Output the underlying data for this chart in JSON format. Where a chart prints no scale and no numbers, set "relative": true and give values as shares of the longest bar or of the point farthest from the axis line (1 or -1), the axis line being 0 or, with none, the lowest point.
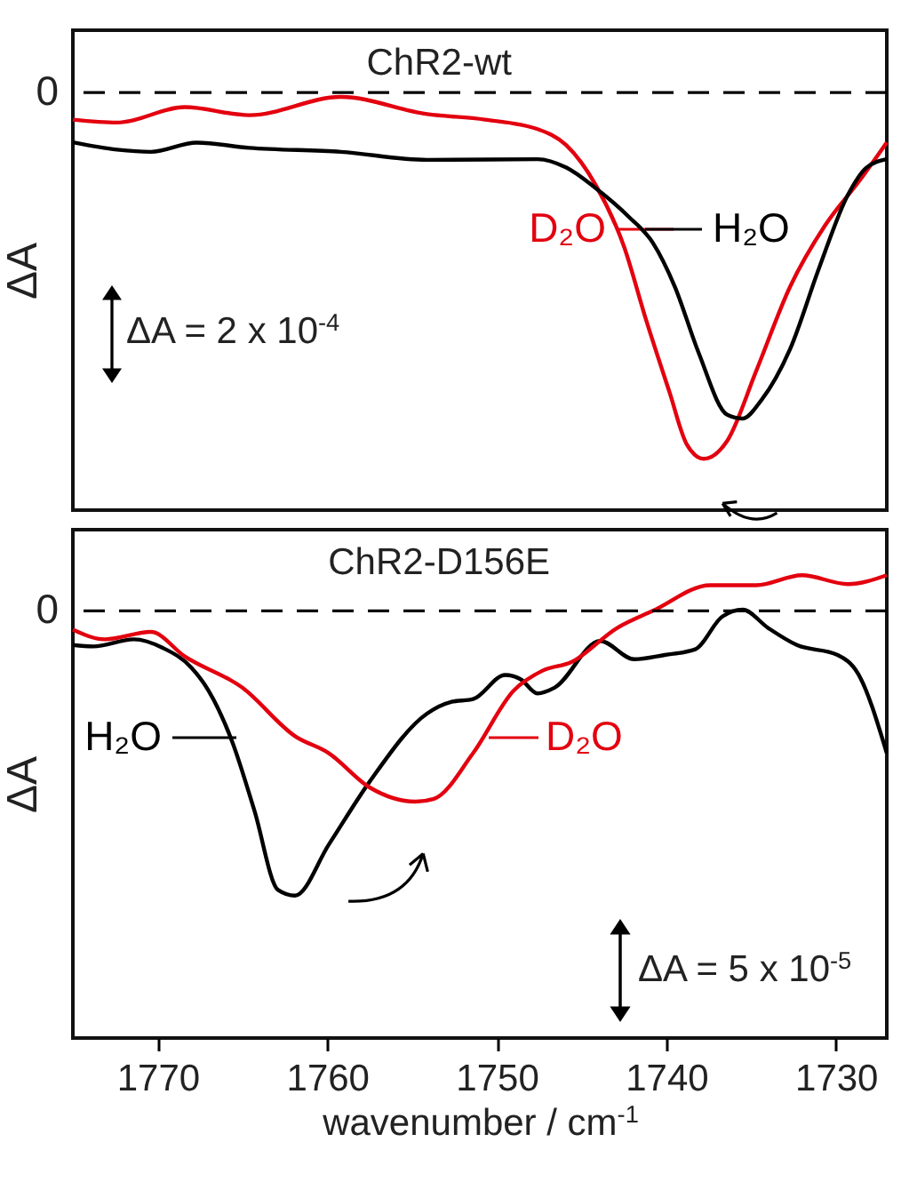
{
  "chart_data": [
    {
      "type": "line",
      "title": "ChR2-wt",
      "ylabel": "ΔA",
      "relative": true,
      "xlim": [
        1775,
        1727
      ],
      "tick_labels": false,
      "marker": "none",
      "line_style": "solid",
      "grid": false,
      "series": [
        {
          "name": "D₂O",
          "color": "#e3000f",
          "x": [
            1775.0,
            1772.4,
            1768.4,
            1764.6,
            1759.2,
            1754.1,
            1750.7,
            1747.6,
            1745.9,
            1744.2,
            1742.5,
            1741.2,
            1739.8,
            1738.8,
            1737.8,
            1736.4,
            1734.7,
            1732.7,
            1730.6,
            1728.6,
            1727.0
          ],
          "values": [
            -0.074,
            -0.082,
            -0.04,
            -0.062,
            -0.012,
            -0.059,
            -0.074,
            -0.1,
            -0.144,
            -0.25,
            -0.42,
            -0.62,
            -0.82,
            -0.96,
            -1,
            -0.95,
            -0.76,
            -0.53,
            -0.36,
            -0.24,
            -0.136
          ]
        },
        {
          "name": "H₂O",
          "color": "#000000",
          "x": [
            1775.0,
            1772.4,
            1770.4,
            1767.7,
            1764.6,
            1759.2,
            1754.1,
            1747.6,
            1745.9,
            1744.2,
            1742.2,
            1740.8,
            1739.5,
            1738.1,
            1736.4,
            1735.5,
            1734.4,
            1732.7,
            1731.0,
            1729.3,
            1728.2,
            1727.0
          ],
          "values": [
            -0.136,
            -0.156,
            -0.162,
            -0.137,
            -0.151,
            -0.162,
            -0.184,
            -0.182,
            -0.205,
            -0.26,
            -0.34,
            -0.41,
            -0.53,
            -0.71,
            -0.88,
            -0.89,
            -0.84,
            -0.7,
            -0.48,
            -0.28,
            -0.205,
            -0.182
          ]
        }
      ],
      "ref_lines": [
        {
          "axis": "y",
          "value": 0,
          "label": "0",
          "color": "#000000",
          "line_style": "dashed"
        }
      ],
      "annotations": [
        "ΔA = 2 x 10$^{-4}$"
      ]
    },
    {
      "type": "line",
      "title": "ChR2-D156E",
      "ylabel": "ΔA",
      "xlabel": "wavenumber / cm$^{-1}$",
      "relative": true,
      "xlim": [
        1775,
        1727
      ],
      "tick_labels": "x",
      "marker": "none",
      "line_style": "solid",
      "grid": false,
      "xticks": [
        1770,
        1760,
        1750,
        1740,
        1730
      ],
      "series": [
        {
          "name": "H₂O",
          "color": "#000000",
          "x": [
            1775.0,
            1773.8,
            1771.4,
            1769.7,
            1768.0,
            1767.0,
            1765.6,
            1764.3,
            1762.9,
            1761.9,
            1759.9,
            1757.5,
            1754.1,
            1752.7,
            1751.4,
            1749.5,
            1748.6,
            1747.6,
            1746.6,
            1743.9,
            1741.9,
            1740.1,
            1738.3,
            1736.7,
            1735.5,
            1734.0,
            1732.3,
            1729.9,
            1728.7,
            1727.0
          ],
          "values": [
            -0.12,
            -0.125,
            -0.1,
            -0.13,
            -0.2,
            -0.28,
            -0.46,
            -0.7,
            -0.98,
            -1,
            -0.82,
            -0.6,
            -0.36,
            -0.32,
            -0.31,
            -0.225,
            -0.24,
            -0.29,
            -0.27,
            -0.106,
            -0.17,
            -0.155,
            -0.135,
            -0.02,
            0.004,
            -0.06,
            -0.12,
            -0.155,
            -0.22,
            -0.5
          ]
        },
        {
          "name": "D₂O",
          "color": "#e3000f",
          "x": [
            1775.0,
            1773.1,
            1770.4,
            1768.4,
            1765.0,
            1761.9,
            1759.9,
            1757.5,
            1754.8,
            1753.7,
            1751.4,
            1749.0,
            1747.3,
            1745.6,
            1742.9,
            1740.8,
            1737.4,
            1734.7,
            1732.0,
            1729.3,
            1727.0
          ],
          "values": [
            -0.066,
            -0.1,
            -0.074,
            -0.16,
            -0.27,
            -0.44,
            -0.5,
            -0.62,
            -0.67,
            -0.66,
            -0.5,
            -0.28,
            -0.21,
            -0.18,
            -0.06,
            0,
            0.09,
            0.09,
            0.125,
            0.094,
            0.125
          ]
        }
      ],
      "ref_lines": [
        {
          "axis": "y",
          "value": 0,
          "label": "0",
          "color": "#000000",
          "line_style": "dashed"
        }
      ],
      "annotations": [
        "ΔA = 5 x 10$^{-5}$"
      ]
    }
  ]
}
